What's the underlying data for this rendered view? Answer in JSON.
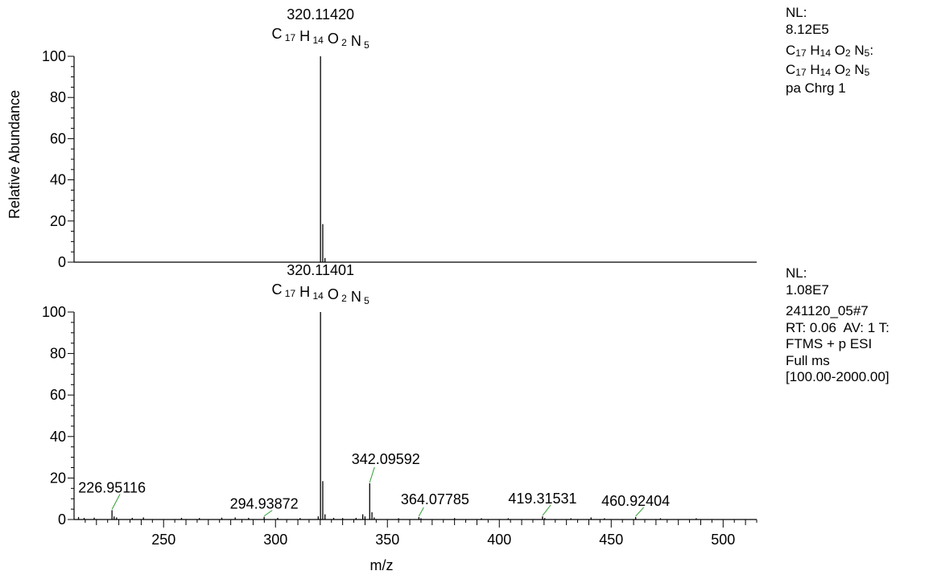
{
  "chart_data": [
    {
      "type": "bar",
      "label_line1": "320.11420",
      "formula": [
        {
          "el": "C",
          "n": "17"
        },
        {
          "el": "H",
          "n": "14"
        },
        {
          "el": "O",
          "n": "2"
        },
        {
          "el": "N",
          "n": "5"
        }
      ],
      "ylabel": "Relative Abundance",
      "xlim": [
        210,
        515
      ],
      "ylim": [
        0,
        100
      ],
      "yticks": [
        0,
        20,
        40,
        60,
        80,
        100
      ],
      "peaks": [
        {
          "mz": 320.1142,
          "ab": 100
        },
        {
          "mz": 321.117,
          "ab": 18.5
        },
        {
          "mz": 322.12,
          "ab": 2
        }
      ],
      "side": {
        "nl_label": "NL:",
        "nl_value": "8.12E5",
        "formula_colon": ":",
        "line_last": "pa Chrg 1"
      }
    },
    {
      "type": "bar",
      "label_line1": "320.11401",
      "formula": [
        {
          "el": "C",
          "n": "17"
        },
        {
          "el": "H",
          "n": "14"
        },
        {
          "el": "O",
          "n": "2"
        },
        {
          "el": "N",
          "n": "5"
        }
      ],
      "xlabel": "m/z",
      "xlim": [
        210,
        515
      ],
      "ylim": [
        0,
        100
      ],
      "yticks": [
        0,
        20,
        40,
        60,
        80,
        100
      ],
      "xticks": [
        250,
        300,
        350,
        400,
        450,
        500
      ],
      "peaks": [
        {
          "mz": 212.0,
          "ab": 1.2
        },
        {
          "mz": 214.5,
          "ab": 0.8
        },
        {
          "mz": 219.0,
          "ab": 0.9
        },
        {
          "mz": 226.95116,
          "ab": 4.5
        },
        {
          "mz": 227.9,
          "ab": 1.5
        },
        {
          "mz": 229.0,
          "ab": 1.0
        },
        {
          "mz": 236.0,
          "ab": 0.8
        },
        {
          "mz": 241.0,
          "ab": 1.0
        },
        {
          "mz": 258.0,
          "ab": 0.8
        },
        {
          "mz": 266.0,
          "ab": 0.7
        },
        {
          "mz": 276.0,
          "ab": 0.9
        },
        {
          "mz": 282.0,
          "ab": 1.0
        },
        {
          "mz": 288.0,
          "ab": 0.8
        },
        {
          "mz": 294.93872,
          "ab": 1.3
        },
        {
          "mz": 301.0,
          "ab": 0.8
        },
        {
          "mz": 311.0,
          "ab": 0.7
        },
        {
          "mz": 319.1,
          "ab": 1.5
        },
        {
          "mz": 320.11401,
          "ab": 100
        },
        {
          "mz": 321.117,
          "ab": 18.5
        },
        {
          "mz": 322.12,
          "ab": 2.5
        },
        {
          "mz": 326.0,
          "ab": 0.8
        },
        {
          "mz": 330.0,
          "ab": 0.7
        },
        {
          "mz": 336.0,
          "ab": 0.8
        },
        {
          "mz": 339.0,
          "ab": 2.5
        },
        {
          "mz": 340.0,
          "ab": 1.5
        },
        {
          "mz": 342.09592,
          "ab": 17.5
        },
        {
          "mz": 343.1,
          "ab": 3.5
        },
        {
          "mz": 344.1,
          "ab": 1.0
        },
        {
          "mz": 355.0,
          "ab": 0.6
        },
        {
          "mz": 364.07785,
          "ab": 1.2
        },
        {
          "mz": 365.0,
          "ab": 0.6
        },
        {
          "mz": 380.0,
          "ab": 0.7
        },
        {
          "mz": 392.0,
          "ab": 0.6
        },
        {
          "mz": 404.0,
          "ab": 0.6
        },
        {
          "mz": 419.31531,
          "ab": 1.5
        },
        {
          "mz": 420.3,
          "ab": 0.7
        },
        {
          "mz": 432.0,
          "ab": 0.6
        },
        {
          "mz": 441.0,
          "ab": 1.0
        },
        {
          "mz": 447.0,
          "ab": 0.6
        },
        {
          "mz": 460.92404,
          "ab": 1.2
        },
        {
          "mz": 472.0,
          "ab": 0.6
        },
        {
          "mz": 488.0,
          "ab": 0.6
        }
      ],
      "annotations": [
        {
          "text": "226.95116",
          "mz": 226.95116,
          "ab": 4.5
        },
        {
          "text": "294.93872",
          "mz": 294.93872,
          "ab": 1.3
        },
        {
          "text": "342.09592",
          "mz": 342.09592,
          "ab": 17.5
        },
        {
          "text": "364.07785",
          "mz": 364.07785,
          "ab": 1.2
        },
        {
          "text": "419.31531",
          "mz": 419.31531,
          "ab": 1.5
        },
        {
          "text": "460.92404",
          "mz": 460.92404,
          "ab": 1.2
        }
      ],
      "side": {
        "nl_label": "NL:",
        "nl_value": "1.08E7",
        "lines": [
          "241120_05#7",
          "RT: 0.06  AV: 1 T:",
          "FTMS + p ESI",
          "Full ms",
          "[100.00-2000.00]"
        ]
      }
    }
  ],
  "colors": {
    "axis": "#000000",
    "peak": "#000000",
    "leader": "#2f9e2f"
  }
}
